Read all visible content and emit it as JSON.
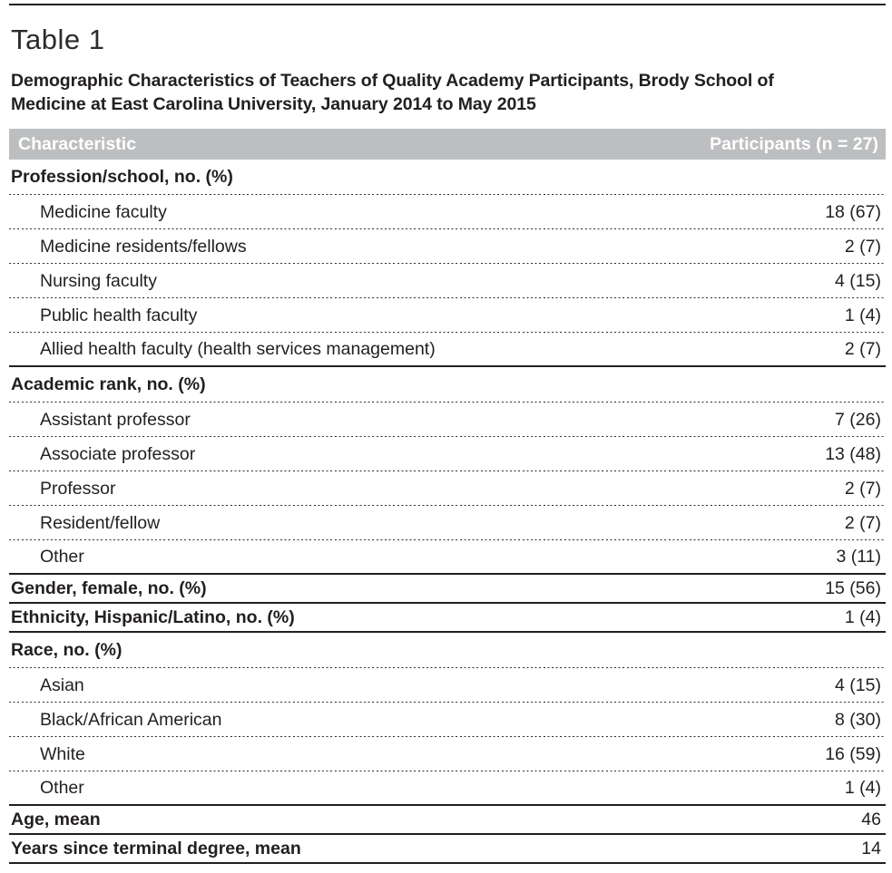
{
  "table_label": "Table 1",
  "title": "Demographic Characteristics of Teachers of Quality Academy Participants, Brody School of Medicine at East Carolina University, January 2014 to May 2015",
  "header": {
    "characteristic": "Characteristic",
    "participants": "Participants (n = 27)"
  },
  "colors": {
    "header_bg": "#bcbec0",
    "header_text": "#ffffff",
    "body_text": "#231f20"
  },
  "rows": [
    {
      "kind": "section",
      "label": "Profession/school, no. (%)",
      "value": "",
      "rule": "dotted"
    },
    {
      "kind": "item",
      "label": "Medicine faculty",
      "value": "18 (67)",
      "rule": "dotted"
    },
    {
      "kind": "item",
      "label": "Medicine residents/fellows",
      "value": "2 (7)",
      "rule": "dotted"
    },
    {
      "kind": "item",
      "label": "Nursing faculty",
      "value": "4 (15)",
      "rule": "dotted"
    },
    {
      "kind": "item",
      "label": "Public health faculty",
      "value": "1 (4)",
      "rule": "dotted"
    },
    {
      "kind": "item",
      "label": "Allied health faculty (health services management)",
      "value": "2 (7)",
      "rule": "solid"
    },
    {
      "kind": "section",
      "label": "Academic rank, no. (%)",
      "value": "",
      "rule": "dotted"
    },
    {
      "kind": "item",
      "label": "Assistant professor",
      "value": "7 (26)",
      "rule": "dotted"
    },
    {
      "kind": "item",
      "label": "Associate professor",
      "value": "13 (48)",
      "rule": "dotted"
    },
    {
      "kind": "item",
      "label": "Professor",
      "value": "2 (7)",
      "rule": "dotted"
    },
    {
      "kind": "item",
      "label": "Resident/fellow",
      "value": "2 (7)",
      "rule": "dotted"
    },
    {
      "kind": "item",
      "label": "Other",
      "value": "3 (11)",
      "rule": "solid"
    },
    {
      "kind": "bold",
      "label": "Gender, female, no. (%)",
      "value": "15 (56)",
      "rule": "solid"
    },
    {
      "kind": "bold",
      "label": "Ethnicity, Hispanic/Latino, no. (%)",
      "value": "1 (4)",
      "rule": "solid"
    },
    {
      "kind": "section",
      "label": "Race, no. (%)",
      "value": "",
      "rule": "dotted"
    },
    {
      "kind": "item",
      "label": "Asian",
      "value": "4 (15)",
      "rule": "dotted"
    },
    {
      "kind": "item",
      "label": "Black/African American",
      "value": "8 (30)",
      "rule": "dotted"
    },
    {
      "kind": "item",
      "label": "White",
      "value": "16 (59)",
      "rule": "dotted"
    },
    {
      "kind": "item",
      "label": "Other",
      "value": "1 (4)",
      "rule": "solid"
    },
    {
      "kind": "bold",
      "label": "Age, mean",
      "value": "46",
      "rule": "solid"
    },
    {
      "kind": "bold",
      "label": "Years since terminal degree, mean",
      "value": "14",
      "rule": "solid"
    }
  ]
}
